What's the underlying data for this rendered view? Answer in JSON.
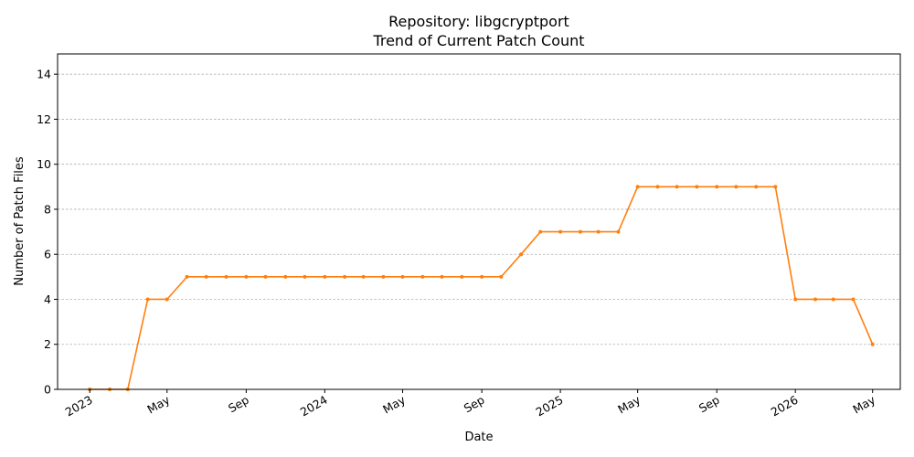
{
  "chart_data": {
    "type": "line",
    "title": "Repository: libgcryptport",
    "subtitle": "Trend of Current Patch Count",
    "xlabel": "Date",
    "ylabel": "Number of Patch Files",
    "ylim": [
      0,
      14.9
    ],
    "xlim": [
      "2022-11-12",
      "2026-06-13"
    ],
    "yticks": [
      0,
      2,
      4,
      6,
      8,
      10,
      12,
      14
    ],
    "xticks": [
      {
        "date": "2023-01-01",
        "label": "2023"
      },
      {
        "date": "2023-05-01",
        "label": "May"
      },
      {
        "date": "2023-09-01",
        "label": "Sep"
      },
      {
        "date": "2024-01-01",
        "label": "2024"
      },
      {
        "date": "2024-05-01",
        "label": "May"
      },
      {
        "date": "2024-09-01",
        "label": "Sep"
      },
      {
        "date": "2025-01-01",
        "label": "2025"
      },
      {
        "date": "2025-05-01",
        "label": "May"
      },
      {
        "date": "2025-09-01",
        "label": "Sep"
      },
      {
        "date": "2026-01-01",
        "label": "2026"
      },
      {
        "date": "2026-05-01",
        "label": "May"
      }
    ],
    "grid": "y-only",
    "color": "#ff7f0e",
    "series": [
      {
        "x": [
          "2023-01-01",
          "2023-02-01",
          "2023-03-01",
          "2023-04-01",
          "2023-05-01",
          "2023-06-01",
          "2023-07-01",
          "2023-08-01",
          "2023-09-01",
          "2023-10-01",
          "2023-11-01",
          "2023-12-01",
          "2024-01-01",
          "2024-02-01",
          "2024-03-01",
          "2024-04-01",
          "2024-05-01",
          "2024-06-01",
          "2024-07-01",
          "2024-08-01",
          "2024-09-01",
          "2024-10-01",
          "2024-11-01",
          "2024-12-01",
          "2025-01-01",
          "2025-02-01",
          "2025-03-01",
          "2025-04-01",
          "2025-05-01",
          "2025-06-01",
          "2025-07-01",
          "2025-08-01",
          "2025-09-01",
          "2025-10-01",
          "2025-11-01",
          "2025-12-01",
          "2026-01-01",
          "2026-02-01",
          "2026-03-01",
          "2026-04-01",
          "2026-05-01"
        ],
        "values": [
          0,
          0,
          0,
          4,
          4,
          5,
          5,
          5,
          5,
          5,
          5,
          5,
          5,
          5,
          5,
          5,
          5,
          5,
          5,
          5,
          5,
          5,
          6,
          7,
          7,
          7,
          7,
          7,
          9,
          9,
          9,
          9,
          9,
          9,
          9,
          9,
          4,
          4,
          4,
          4,
          2
        ]
      }
    ]
  }
}
